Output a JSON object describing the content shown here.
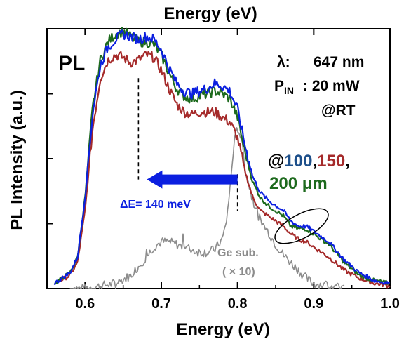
{
  "chart_data": {
    "type": "line",
    "title": "",
    "top_axis_label": "Energy (eV)",
    "xlabel": "Energy (eV)",
    "ylabel": "PL Intensity (a.u.)",
    "xlim": [
      0.55,
      1.0
    ],
    "ylim": [
      0,
      1.0
    ],
    "x_ticks": [
      "0.6",
      "0.7",
      "0.8",
      "0.9",
      "1.0"
    ],
    "y_tick_labels_shown": false,
    "grid": false,
    "series": [
      {
        "color": "#0b1fe0",
        "x": [
          0.56,
          0.58,
          0.59,
          0.6,
          0.61,
          0.62,
          0.63,
          0.64,
          0.65,
          0.66,
          0.67,
          0.68,
          0.69,
          0.7,
          0.71,
          0.72,
          0.73,
          0.74,
          0.75,
          0.76,
          0.77,
          0.78,
          0.79,
          0.8,
          0.81,
          0.82,
          0.83,
          0.84,
          0.85,
          0.86,
          0.87,
          0.88,
          0.89,
          0.9,
          0.92,
          0.94,
          0.96,
          0.98,
          1.0
        ],
        "y": [
          0.02,
          0.06,
          0.12,
          0.35,
          0.68,
          0.86,
          0.93,
          0.96,
          0.98,
          0.97,
          0.96,
          0.97,
          0.96,
          0.92,
          0.85,
          0.79,
          0.76,
          0.75,
          0.76,
          0.77,
          0.79,
          0.78,
          0.76,
          0.69,
          0.55,
          0.43,
          0.37,
          0.34,
          0.32,
          0.3,
          0.26,
          0.24,
          0.24,
          0.22,
          0.18,
          0.11,
          0.06,
          0.03,
          0.02
        ]
      },
      {
        "color": "#1d6a1d",
        "x": [
          0.56,
          0.58,
          0.59,
          0.6,
          0.61,
          0.62,
          0.63,
          0.64,
          0.65,
          0.66,
          0.67,
          0.68,
          0.69,
          0.7,
          0.71,
          0.72,
          0.73,
          0.74,
          0.75,
          0.76,
          0.77,
          0.78,
          0.79,
          0.8,
          0.81,
          0.82,
          0.83,
          0.84,
          0.85,
          0.86,
          0.87,
          0.88,
          0.89,
          0.9,
          0.92,
          0.94,
          0.96,
          0.98,
          1.0
        ],
        "y": [
          0.02,
          0.06,
          0.12,
          0.35,
          0.7,
          0.88,
          0.95,
          0.98,
          0.99,
          0.97,
          0.95,
          0.95,
          0.94,
          0.9,
          0.83,
          0.77,
          0.74,
          0.73,
          0.74,
          0.75,
          0.76,
          0.75,
          0.73,
          0.66,
          0.52,
          0.41,
          0.35,
          0.32,
          0.3,
          0.28,
          0.24,
          0.23,
          0.23,
          0.21,
          0.17,
          0.1,
          0.05,
          0.03,
          0.02
        ]
      },
      {
        "color": "#a52a2a",
        "x": [
          0.56,
          0.58,
          0.59,
          0.6,
          0.61,
          0.62,
          0.63,
          0.64,
          0.65,
          0.66,
          0.67,
          0.68,
          0.69,
          0.7,
          0.71,
          0.72,
          0.73,
          0.74,
          0.75,
          0.76,
          0.77,
          0.78,
          0.79,
          0.8,
          0.81,
          0.82,
          0.83,
          0.84,
          0.85,
          0.86,
          0.87,
          0.88,
          0.89,
          0.9,
          0.92,
          0.94,
          0.96,
          0.98,
          1.0
        ],
        "y": [
          0.02,
          0.05,
          0.1,
          0.3,
          0.62,
          0.81,
          0.88,
          0.9,
          0.89,
          0.87,
          0.88,
          0.9,
          0.89,
          0.84,
          0.77,
          0.71,
          0.68,
          0.67,
          0.68,
          0.68,
          0.68,
          0.66,
          0.64,
          0.58,
          0.45,
          0.35,
          0.3,
          0.28,
          0.26,
          0.24,
          0.21,
          0.19,
          0.18,
          0.16,
          0.12,
          0.07,
          0.04,
          0.02,
          0.01
        ]
      },
      {
        "name": "Ge sub.",
        "color": "#8c8c8c",
        "x": [
          0.58,
          0.6,
          0.62,
          0.64,
          0.66,
          0.68,
          0.69,
          0.7,
          0.71,
          0.72,
          0.73,
          0.74,
          0.75,
          0.76,
          0.77,
          0.78,
          0.785,
          0.79,
          0.795,
          0.8,
          0.805,
          0.81,
          0.82,
          0.83,
          0.84,
          0.85,
          0.86,
          0.87,
          0.88,
          0.89,
          0.9,
          0.92,
          0.94
        ],
        "y": [
          0.0,
          0.0,
          0.01,
          0.02,
          0.05,
          0.12,
          0.16,
          0.18,
          0.18,
          0.17,
          0.16,
          0.15,
          0.14,
          0.14,
          0.15,
          0.19,
          0.25,
          0.38,
          0.55,
          0.62,
          0.58,
          0.46,
          0.34,
          0.26,
          0.22,
          0.17,
          0.13,
          0.1,
          0.07,
          0.04,
          0.02,
          0.01,
          0.0
        ]
      }
    ],
    "annotations": {
      "panel": "PL",
      "lambda_label": "λ:",
      "lambda_value": "647 nm",
      "pin_label": "P",
      "pin_sub": "IN",
      "pin_value": ": 20 mW",
      "temp": "@RT",
      "legend_prefix": "@",
      "legend_100": "100",
      "legend_sep1": ",",
      "legend_150": "150",
      "legend_sep2": ",",
      "legend_200": "200 μm",
      "shift_label": "ΔE= 140 meV",
      "shift_from_x": 0.8,
      "shift_to_x": 0.67,
      "ge_label": "Ge sub.",
      "ge_factor": "( × 10)"
    },
    "colors": {
      "c100": "#1d4f8a",
      "c150": "#a52a2a",
      "c200": "#1d6a1d",
      "arrow": "#0b1fe0",
      "ge": "#8c8c8c"
    }
  }
}
